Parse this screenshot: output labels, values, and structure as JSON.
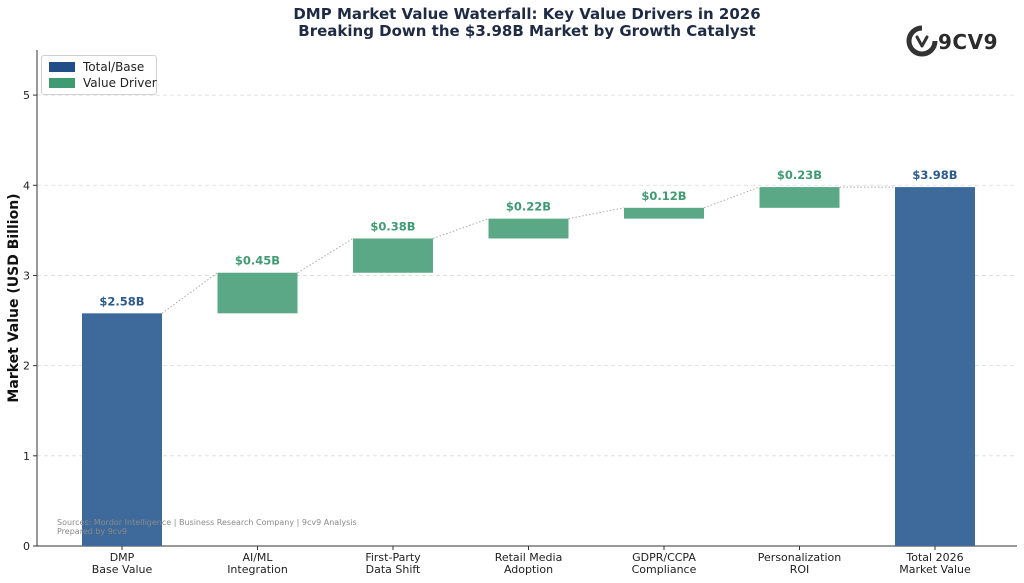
{
  "title_lines": [
    "DMP Market Value Waterfall: Key Value Drivers in 2026",
    "Breaking Down the $3.98B Market by Growth Catalyst"
  ],
  "logo": {
    "text": "9CV9",
    "icon": "9cv9-logo-icon"
  },
  "colors": {
    "total": "#3d6a9a",
    "driver": "#5aa886",
    "total_label": "#2b5a8c",
    "driver_label": "#3f9c72"
  },
  "legend": [
    {
      "label": "Total/Base",
      "color": "#1f4e89"
    },
    {
      "label": "Value Driver",
      "color": "#3f9c72"
    }
  ],
  "source_lines": [
    "Sources: Mordor Intelligence | Business Research Company | 9cv9 Analysis",
    "Prepared by 9cv9"
  ],
  "chart_data": {
    "type": "bar",
    "subtype": "waterfall",
    "ylabel": "Market Value (USD Billion)",
    "xlabel": "",
    "ylim": [
      0,
      5.5
    ],
    "yticks": [
      "0",
      "1",
      "2",
      "3",
      "4",
      "5"
    ],
    "grid": "horizontal dashed",
    "legend_position": "top-left",
    "categories": [
      [
        "DMP",
        "Base Value"
      ],
      [
        "AI/ML",
        "Integration"
      ],
      [
        "First-Party",
        "Data Shift"
      ],
      [
        "Retail Media",
        "Adoption"
      ],
      [
        "GDPR/CCPA",
        "Compliance"
      ],
      [
        "Personalization",
        "ROI"
      ],
      [
        "Total 2026",
        "Market Value"
      ]
    ],
    "bars": [
      {
        "kind": "total",
        "start": 0,
        "end": 2.58,
        "label": "$2.58B"
      },
      {
        "kind": "driver",
        "start": 2.58,
        "end": 3.03,
        "label": "$0.45B"
      },
      {
        "kind": "driver",
        "start": 3.03,
        "end": 3.41,
        "label": "$0.38B"
      },
      {
        "kind": "driver",
        "start": 3.41,
        "end": 3.63,
        "label": "$0.22B"
      },
      {
        "kind": "driver",
        "start": 3.63,
        "end": 3.75,
        "label": "$0.12B"
      },
      {
        "kind": "driver",
        "start": 3.75,
        "end": 3.98,
        "label": "$0.23B"
      },
      {
        "kind": "total",
        "start": 0,
        "end": 3.98,
        "label": "$3.98B"
      }
    ]
  }
}
